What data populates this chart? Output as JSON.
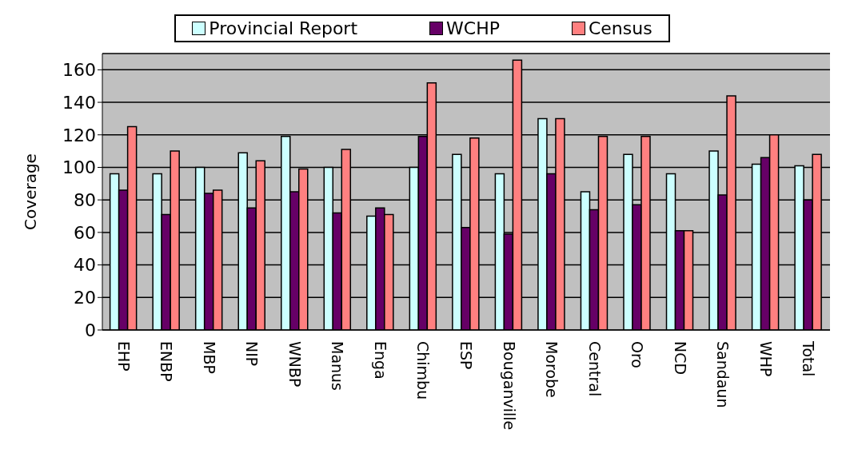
{
  "chart_data": {
    "type": "bar",
    "ylabel": "Coverage",
    "categories": [
      "EHP",
      "ENBP",
      "MBP",
      "NIP",
      "WNBP",
      "Manus",
      "Enga",
      "Chimbu",
      "ESP",
      "Bouganville",
      "Morobe",
      "Central",
      "Oro",
      "NCD",
      "Sandaun",
      "WHP",
      "Total"
    ],
    "series": [
      {
        "name": "Provincial Report",
        "color": "#ccffff",
        "values": [
          96,
          96,
          100,
          109,
          119,
          100,
          70,
          100,
          108,
          96,
          130,
          85,
          108,
          96,
          110,
          102,
          101
        ]
      },
      {
        "name": "WCHP",
        "color": "#660066",
        "values": [
          86,
          71,
          84,
          75,
          85,
          72,
          75,
          119,
          63,
          59,
          96,
          74,
          77,
          61,
          83,
          106,
          80
        ]
      },
      {
        "name": "Census",
        "color": "#ff8080",
        "values": [
          125,
          110,
          86,
          104,
          99,
          111,
          71,
          152,
          118,
          166,
          130,
          119,
          119,
          61,
          144,
          120,
          108
        ]
      }
    ],
    "ylim": [
      0,
      170
    ],
    "yticks": [
      0,
      20,
      40,
      60,
      80,
      100,
      120,
      140,
      160
    ],
    "grid": "y",
    "legend": "top"
  }
}
